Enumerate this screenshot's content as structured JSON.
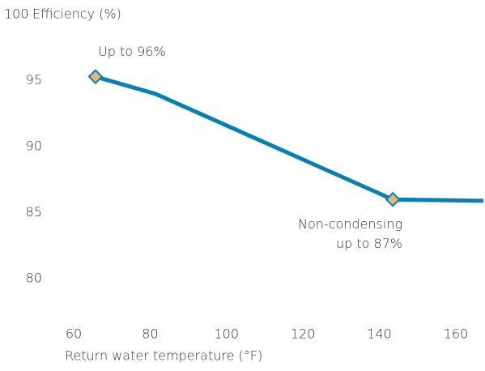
{
  "chart_data": {
    "type": "line",
    "xlabel": "Return water temperature (°F)",
    "ylabel": "Efficiency (%)",
    "x": [
      65.7,
      81.4,
      143.5,
      167.2
    ],
    "series": [
      {
        "name": "Efficiency",
        "color": "#0a7fb5",
        "values": [
          95.3,
          94.0,
          86.0,
          85.9
        ]
      }
    ],
    "markers": [
      0,
      2
    ],
    "marker_color": "#e2b77c",
    "annotations": [
      {
        "point": 0,
        "text": [
          "Up to 96%"
        ]
      },
      {
        "point": 2,
        "text": [
          "Non-condensing",
          "up to 87%"
        ]
      }
    ],
    "xlim": [
      55,
      167
    ],
    "xticks": [
      60,
      80,
      100,
      120,
      140,
      160
    ],
    "ylim": [
      77,
      100
    ],
    "yticks": [
      80,
      85,
      90,
      95,
      100
    ],
    "grid": false
  }
}
